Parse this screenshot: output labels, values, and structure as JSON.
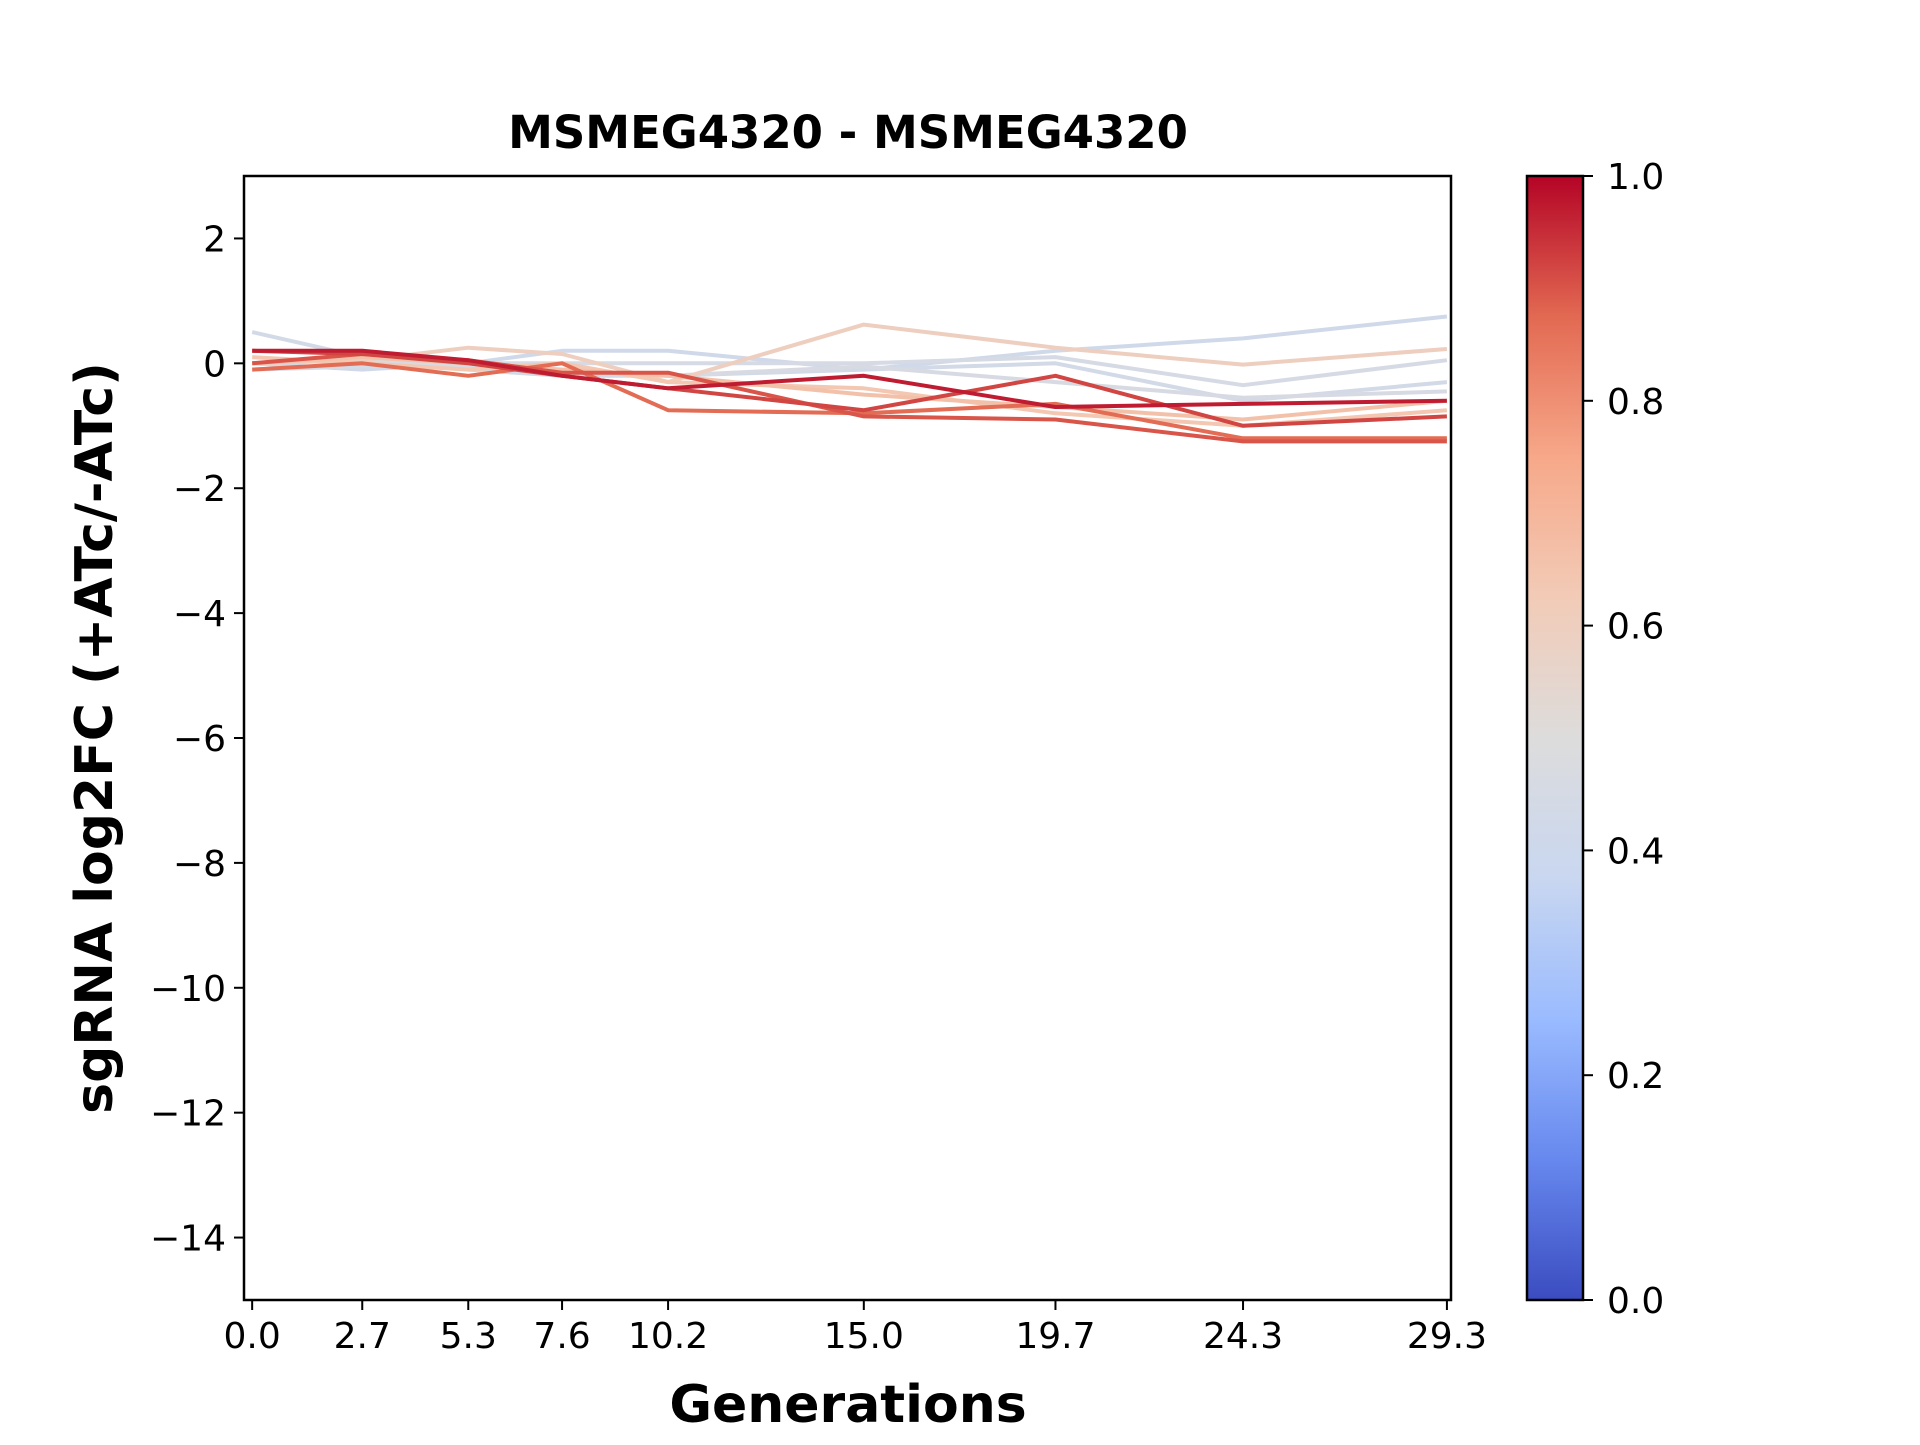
{
  "chart_data": {
    "type": "line",
    "title": "MSMEG4320 - MSMEG4320",
    "xlabel": "Generations",
    "ylabel": "sgRNA log2FC (+ATc/-ATc)",
    "x": [
      0.0,
      2.7,
      5.3,
      7.6,
      10.2,
      15.0,
      19.7,
      24.3,
      29.3
    ],
    "x_tick_labels": [
      "0.0",
      "2.7",
      "5.3",
      "7.6",
      "10.2",
      "15.0",
      "19.7",
      "24.3",
      "29.3"
    ],
    "xlim": [
      -0.2,
      29.4
    ],
    "ylim": [
      -15,
      3
    ],
    "y_ticks": [
      2,
      0,
      -2,
      -4,
      -6,
      -8,
      -10,
      -12,
      -14
    ],
    "y_tick_labels": [
      "2",
      "0",
      "−2",
      "−4",
      "−6",
      "−8",
      "−10",
      "−12",
      "−14"
    ],
    "grid": false,
    "colormap": "coolwarm",
    "colorbar": {
      "min": 0.0,
      "max": 1.0,
      "ticks": [
        0.0,
        0.2,
        0.4,
        0.6,
        0.8,
        1.0
      ],
      "tick_labels": [
        "0.0",
        "0.2",
        "0.4",
        "0.6",
        "0.8",
        "1.0"
      ],
      "stops": [
        "#3b4cc0",
        "#6788ee",
        "#9abbff",
        "#c9d7f0",
        "#dddcdc",
        "#f2cbb7",
        "#f7a889",
        "#e26952",
        "#b40426"
      ]
    },
    "series": [
      {
        "color_value": 0.43,
        "values": [
          0.5,
          0.1,
          -0.1,
          -0.2,
          -0.2,
          -0.1,
          0.0,
          -0.6,
          -0.3
        ]
      },
      {
        "color_value": 0.42,
        "values": [
          0.0,
          -0.1,
          0.0,
          0.2,
          0.2,
          -0.1,
          0.2,
          0.4,
          0.75
        ]
      },
      {
        "color_value": 0.45,
        "values": [
          -0.1,
          -0.05,
          0.0,
          0.0,
          0.0,
          0.0,
          0.1,
          -0.35,
          0.05
        ]
      },
      {
        "color_value": 0.46,
        "values": [
          0.0,
          0.05,
          -0.05,
          -0.1,
          -0.2,
          -0.05,
          -0.3,
          -0.55,
          -0.45
        ]
      },
      {
        "color_value": 0.6,
        "values": [
          0.0,
          0.05,
          0.25,
          0.15,
          -0.3,
          0.62,
          0.25,
          -0.02,
          0.23
        ]
      },
      {
        "color_value": 0.64,
        "values": [
          0.1,
          0.0,
          -0.1,
          0.0,
          -0.3,
          -0.4,
          -0.8,
          -1.0,
          -0.75
        ]
      },
      {
        "color_value": 0.66,
        "values": [
          0.0,
          0.1,
          0.0,
          -0.1,
          -0.2,
          -0.5,
          -0.7,
          -0.9,
          -0.6
        ]
      },
      {
        "color_value": 0.87,
        "values": [
          -0.1,
          0.0,
          -0.2,
          0.0,
          -0.75,
          -0.8,
          -0.65,
          -1.2,
          -1.2
        ]
      },
      {
        "color_value": 0.9,
        "values": [
          0.0,
          0.15,
          0.05,
          -0.15,
          -0.15,
          -0.85,
          -0.9,
          -1.25,
          -1.25
        ]
      },
      {
        "color_value": 0.92,
        "values": [
          0.2,
          0.15,
          0.0,
          -0.2,
          -0.4,
          -0.75,
          -0.2,
          -1.0,
          -0.85
        ]
      },
      {
        "color_value": 0.97,
        "values": [
          0.2,
          0.2,
          0.05,
          -0.2,
          -0.4,
          -0.2,
          -0.7,
          -0.65,
          -0.6
        ]
      }
    ]
  }
}
